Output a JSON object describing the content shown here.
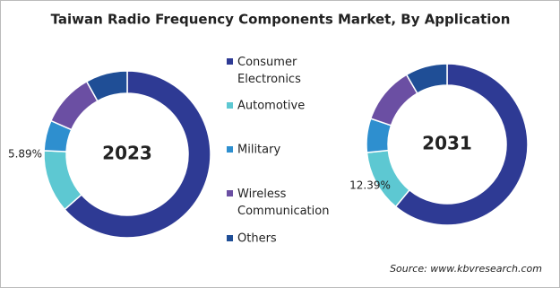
{
  "title": "Taiwan Radio Frequency Components Market, By Application",
  "source": "Source: www.kbvresearch.com",
  "chart_data": [
    {
      "type": "pie",
      "donut": true,
      "center_label": "2023",
      "categories": [
        "Consumer Electronics",
        "Automotive",
        "Military",
        "Wireless Communication",
        "Others"
      ],
      "colors": [
        "#2e3a94",
        "#5dc8d2",
        "#2e8fcf",
        "#6b4fa3",
        "#1f4e96"
      ],
      "values": [
        63.5,
        12.2,
        5.89,
        10.3,
        8.1
      ],
      "value_labels": [
        null,
        null,
        "5.89%",
        null,
        null
      ]
    },
    {
      "type": "pie",
      "donut": true,
      "center_label": "2031",
      "values": [
        61,
        12.39,
        6.8,
        11.4,
        8.4
      ],
      "value_labels": [
        null,
        "12.39%",
        null,
        null,
        null
      ]
    }
  ]
}
